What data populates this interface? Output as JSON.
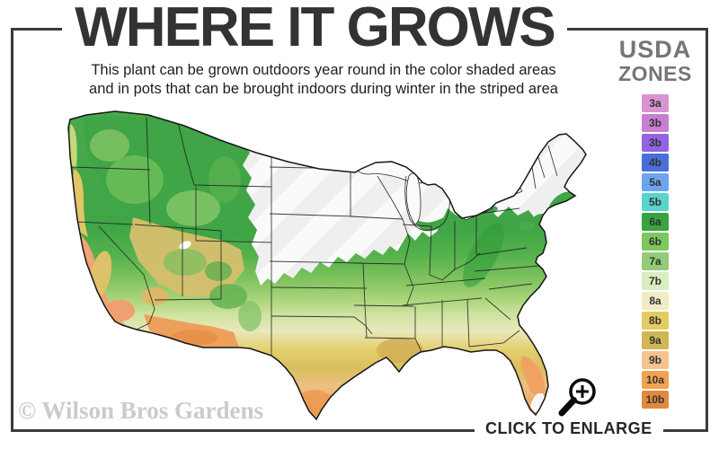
{
  "header": {
    "title": "WHERE IT GROWS",
    "subtitle_line1": "This plant can be grown outdoors year round in the color shaded areas",
    "subtitle_line2": "and in pots that can be brought indoors during winter in the striped area"
  },
  "legend": {
    "title_line1": "USDA",
    "title_line2": "ZONES",
    "zones": [
      {
        "label": "3a",
        "color": "#d893d2"
      },
      {
        "label": "3b",
        "color": "#c77fd0"
      },
      {
        "label": "3b",
        "color": "#9463e3"
      },
      {
        "label": "4b",
        "color": "#4a6ed8"
      },
      {
        "label": "5a",
        "color": "#6da4ef"
      },
      {
        "label": "5b",
        "color": "#59d5cf"
      },
      {
        "label": "6a",
        "color": "#38a341"
      },
      {
        "label": "6b",
        "color": "#7ec75e"
      },
      {
        "label": "7a",
        "color": "#93cc78"
      },
      {
        "label": "7b",
        "color": "#d9edc2"
      },
      {
        "label": "8a",
        "color": "#f0ecc3"
      },
      {
        "label": "8b",
        "color": "#e5cc62"
      },
      {
        "label": "9a",
        "color": "#d1b654"
      },
      {
        "label": "9b",
        "color": "#f6c38e"
      },
      {
        "label": "10a",
        "color": "#f1a24e"
      },
      {
        "label": "10b",
        "color": "#e2893c"
      }
    ]
  },
  "map": {
    "watermark": "© Wilson Bros Gardens"
  },
  "footer": {
    "enlarge_label": "CLICK TO ENLARGE",
    "magnifier_icon": "zoom-in-icon"
  },
  "theme": {
    "frame": "#3b3b3b",
    "title": "#333333",
    "subtitle": "#1e1e1e",
    "legend_title": "#767676",
    "watermark": "#cbcbcb",
    "cta": "#262626"
  }
}
